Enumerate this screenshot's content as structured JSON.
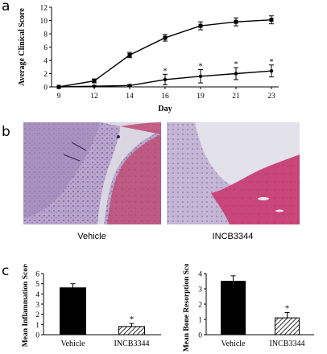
{
  "panels": {
    "a": {
      "letter": "a"
    },
    "b": {
      "letter": "b",
      "images": [
        {
          "caption": "Vehicle"
        },
        {
          "caption": "INCB3344"
        }
      ]
    },
    "c": {
      "letter": "c"
    }
  },
  "chart_data": [
    {
      "type": "line",
      "ylabel": "Average Clinical Score",
      "xlabel": "Day",
      "x": [
        9,
        12,
        14,
        16,
        19,
        21,
        23
      ],
      "ylim": [
        0,
        12
      ],
      "yticks": [
        0,
        2,
        4,
        6,
        8,
        10,
        12
      ],
      "grid": false,
      "series": [
        {
          "values": [
            0,
            0.9,
            4.8,
            7.4,
            9.2,
            9.8,
            10.1
          ],
          "errors": [
            0,
            0.3,
            0.4,
            0.5,
            0.6,
            0.6,
            0.6
          ],
          "sig": [
            false,
            false,
            false,
            false,
            false,
            false,
            false
          ]
        },
        {
          "values": [
            0,
            0.1,
            0.2,
            1.1,
            1.6,
            2.0,
            2.4
          ],
          "errors": [
            0,
            0.1,
            0.15,
            0.8,
            1.0,
            0.9,
            0.9
          ],
          "sig": [
            false,
            false,
            false,
            true,
            true,
            true,
            true
          ]
        }
      ]
    },
    {
      "type": "bar",
      "ylabel": "Mean Inflammation Score",
      "categories": [
        "Vehicle",
        "INCB3344"
      ],
      "values": [
        4.6,
        0.8
      ],
      "errors": [
        0.4,
        0.3
      ],
      "sig": [
        "",
        "*"
      ],
      "ylim": [
        0,
        6
      ],
      "yticks": [
        0,
        1,
        2,
        3,
        4,
        5,
        6
      ],
      "grid": false
    },
    {
      "type": "bar",
      "ylabel": "Mean Bone Resorption Score",
      "categories": [
        "Vehicle",
        "INCB3344"
      ],
      "values": [
        3.5,
        1.1
      ],
      "errors": [
        0.35,
        0.35
      ],
      "sig": [
        "",
        "*"
      ],
      "ylim": [
        0,
        4
      ],
      "yticks": [
        0,
        1,
        2,
        3,
        4
      ],
      "grid": false
    }
  ]
}
